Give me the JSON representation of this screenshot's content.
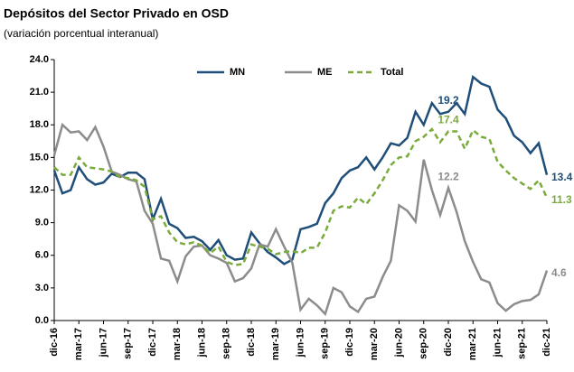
{
  "chart_data": {
    "type": "line",
    "title": "Depósitos del Sector Privado en OSD",
    "subtitle": "(variación porcentual interanual)",
    "categories": [
      "dic-16",
      null,
      null,
      "mar-17",
      null,
      null,
      "jun-17",
      null,
      null,
      "sep-17",
      null,
      null,
      "dic-17",
      null,
      null,
      "mar-18",
      null,
      null,
      "jun-18",
      null,
      null,
      "sep-18",
      null,
      null,
      "dic-18",
      null,
      null,
      "mar-19",
      null,
      null,
      "jun-19",
      null,
      null,
      "sep-19",
      null,
      null,
      "dic-19",
      null,
      null,
      "mar-20",
      null,
      null,
      "jun-20",
      null,
      null,
      "sep-20",
      null,
      null,
      "dic-20",
      null,
      null,
      "mar-21",
      null,
      null,
      "jun-21",
      null,
      null,
      "sep-21",
      null,
      null,
      "dic-21"
    ],
    "series": [
      {
        "name": "MN",
        "color": "#1f4e79",
        "dashed": false,
        "values": [
          13.8,
          11.7,
          12.0,
          14.1,
          13.0,
          12.5,
          12.7,
          13.5,
          13.2,
          13.6,
          13.6,
          13.0,
          9.3,
          11.2,
          8.9,
          8.5,
          7.6,
          7.7,
          7.3,
          6.5,
          7.4,
          6.0,
          5.6,
          5.7,
          8.1,
          7.1,
          6.3,
          5.8,
          5.2,
          5.6,
          8.4,
          8.6,
          8.9,
          10.8,
          11.7,
          13.1,
          13.8,
          14.1,
          15.0,
          13.9,
          15.0,
          16.3,
          16.1,
          16.8,
          19.2,
          18.0,
          20.0,
          19.0,
          19.2,
          20.0,
          19.0,
          22.4,
          21.8,
          21.5,
          19.4,
          18.6,
          17.0,
          16.4,
          15.4,
          16.3,
          13.4
        ],
        "value_labels": [
          null,
          null,
          null,
          null,
          null,
          null,
          null,
          null,
          null,
          null,
          null,
          null,
          null,
          null,
          null,
          null,
          null,
          null,
          null,
          null,
          null,
          null,
          null,
          null,
          null,
          null,
          null,
          null,
          null,
          null,
          null,
          null,
          null,
          null,
          null,
          null,
          null,
          null,
          null,
          null,
          null,
          null,
          null,
          null,
          null,
          null,
          null,
          null,
          "19.2",
          null,
          null,
          null,
          null,
          null,
          null,
          null,
          null,
          null,
          null,
          null,
          "13.4"
        ]
      },
      {
        "name": "ME",
        "color": "#8c8c8c",
        "dashed": false,
        "values": [
          15.2,
          18.0,
          17.3,
          17.4,
          16.6,
          17.8,
          16.0,
          13.7,
          13.4,
          13.0,
          12.8,
          10.1,
          8.9,
          5.7,
          5.5,
          3.6,
          5.9,
          6.8,
          6.9,
          6.0,
          5.7,
          5.3,
          3.6,
          3.9,
          4.8,
          7.0,
          6.8,
          8.4,
          6.8,
          5.3,
          1.0,
          2.0,
          1.4,
          0.6,
          3.0,
          2.6,
          1.3,
          0.8,
          2.0,
          2.2,
          4.0,
          5.5,
          10.6,
          10.1,
          9.1,
          14.8,
          12.0,
          9.7,
          12.2,
          10.0,
          7.3,
          5.4,
          3.8,
          3.5,
          1.6,
          0.9,
          1.5,
          1.8,
          1.9,
          2.4,
          4.6
        ],
        "value_labels": [
          null,
          null,
          null,
          null,
          null,
          null,
          null,
          null,
          null,
          null,
          null,
          null,
          null,
          null,
          null,
          null,
          null,
          null,
          null,
          null,
          null,
          null,
          null,
          null,
          null,
          null,
          null,
          null,
          null,
          null,
          null,
          null,
          null,
          null,
          null,
          null,
          null,
          null,
          null,
          null,
          null,
          null,
          null,
          null,
          null,
          null,
          null,
          null,
          "12.2",
          null,
          null,
          null,
          null,
          null,
          null,
          null,
          null,
          null,
          null,
          null,
          "4.6"
        ]
      },
      {
        "name": "Total",
        "color": "#7aab3c",
        "dashed": true,
        "values": [
          14.1,
          13.4,
          13.4,
          15.0,
          14.1,
          14.0,
          13.9,
          13.7,
          13.2,
          13.1,
          12.9,
          12.3,
          9.3,
          9.6,
          8.1,
          7.2,
          7.0,
          7.2,
          6.9,
          6.2,
          6.8,
          5.4,
          5.1,
          5.2,
          7.0,
          6.8,
          6.6,
          6.1,
          6.3,
          6.4,
          6.2,
          6.7,
          6.7,
          8.1,
          10.1,
          10.5,
          10.4,
          11.3,
          10.7,
          11.7,
          12.9,
          14.3,
          15.0,
          15.1,
          16.5,
          16.9,
          17.6,
          16.4,
          17.4,
          17.4,
          15.8,
          17.5,
          16.9,
          16.7,
          14.6,
          13.8,
          13.1,
          12.6,
          12.1,
          12.9,
          11.3
        ],
        "value_labels": [
          null,
          null,
          null,
          null,
          null,
          null,
          null,
          null,
          null,
          null,
          null,
          null,
          null,
          null,
          null,
          null,
          null,
          null,
          null,
          null,
          null,
          null,
          null,
          null,
          null,
          null,
          null,
          null,
          null,
          null,
          null,
          null,
          null,
          null,
          null,
          null,
          null,
          null,
          null,
          null,
          null,
          null,
          null,
          null,
          null,
          null,
          null,
          null,
          "17.4",
          null,
          null,
          null,
          null,
          null,
          null,
          null,
          null,
          null,
          null,
          null,
          "11.3"
        ]
      }
    ],
    "ylim": [
      0,
      24
    ],
    "yticks": [
      {
        "value": 0,
        "label": "0.0"
      },
      {
        "value": 3,
        "label": "3.0"
      },
      {
        "value": 6,
        "label": "6.0"
      },
      {
        "value": 9,
        "label": "9.0"
      },
      {
        "value": 12,
        "label": "12.0"
      },
      {
        "value": 15,
        "label": "15.0"
      },
      {
        "value": 18,
        "label": "18.0"
      },
      {
        "value": 21,
        "label": "21.0"
      },
      {
        "value": 24,
        "label": "24.0"
      }
    ],
    "grid": false,
    "legend": "top"
  }
}
